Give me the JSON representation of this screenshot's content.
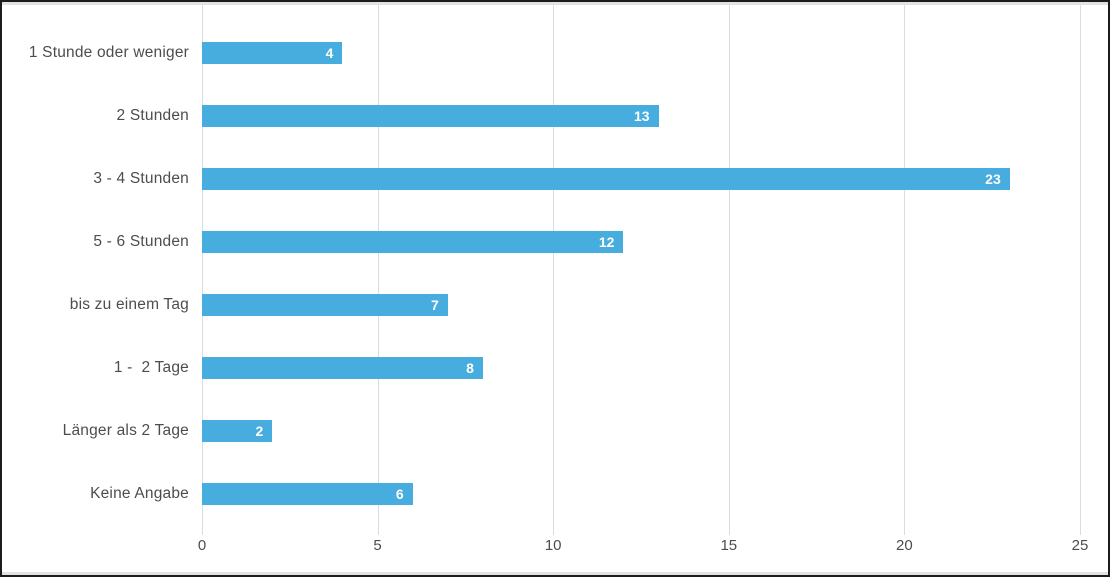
{
  "chart_data": {
    "type": "bar",
    "orientation": "horizontal",
    "title": "",
    "xlabel": "",
    "ylabel": "",
    "categories": [
      "1 Stunde oder weniger",
      "2 Stunden",
      "3 - 4 Stunden",
      "5 - 6 Stunden",
      "bis zu einem Tag",
      "1 -  2 Tage",
      "Länger als 2 Tage",
      "Keine Angabe"
    ],
    "values": [
      4,
      13,
      23,
      12,
      7,
      8,
      2,
      6
    ],
    "x_ticks": [
      0,
      5,
      10,
      15,
      20,
      25
    ],
    "xlim": [
      0,
      25
    ],
    "grid": true,
    "legend": false,
    "bar_color": "#47acde",
    "value_label_color": "#ffffff",
    "axis_label_color": "#4d4d4d",
    "gridline_color": "#dcdcdc"
  }
}
